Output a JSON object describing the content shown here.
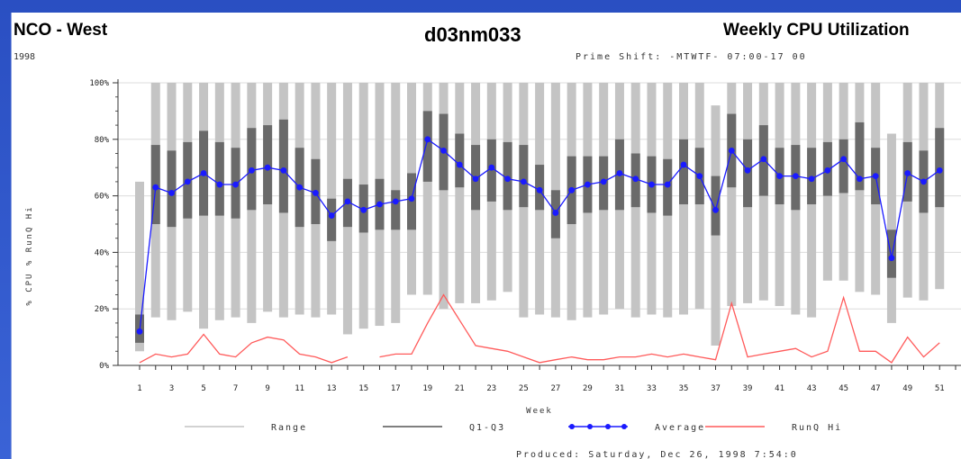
{
  "header": {
    "left_title": "NCO - West",
    "year": "1998",
    "center_title": "d03nm033",
    "right_title": "Weekly CPU Utilization",
    "shift_note": "Prime Shift: -MTWTF- 07:00-17 00",
    "produced": "Produced: Saturday, Dec 26, 1998 7:54:0"
  },
  "chart_data": {
    "type": "line",
    "xlabel": "Week",
    "ylabel": "% CPU  % RunQ Hi",
    "ylim": [
      0,
      100
    ],
    "yticks": [
      "0%",
      "20%",
      "40%",
      "60%",
      "80%",
      "100%"
    ],
    "xticks": [
      "1",
      "3",
      "5",
      "7",
      "9",
      "11",
      "13",
      "15",
      "17",
      "19",
      "21",
      "23",
      "25",
      "27",
      "29",
      "31",
      "33",
      "35",
      "37",
      "39",
      "41",
      "43",
      "45",
      "47",
      "49",
      "51"
    ],
    "grid": true,
    "legend_position": "bottom",
    "colors": {
      "range": "#c4c4c4",
      "q1q3": "#6a6a6a",
      "average": "#1a1aff",
      "runq": "#ff5a5a"
    },
    "weeks": [
      1,
      2,
      3,
      4,
      5,
      6,
      7,
      8,
      9,
      10,
      11,
      12,
      13,
      14,
      15,
      16,
      17,
      18,
      19,
      20,
      21,
      22,
      23,
      24,
      25,
      26,
      27,
      28,
      29,
      30,
      31,
      32,
      33,
      34,
      35,
      36,
      37,
      38,
      39,
      40,
      41,
      42,
      43,
      44,
      45,
      46,
      47,
      48,
      49,
      50,
      51,
      52
    ],
    "series": [
      {
        "name": "Range",
        "low": [
          5,
          17,
          16,
          19,
          13,
          16,
          17,
          15,
          19,
          17,
          18,
          17,
          18,
          11,
          13,
          14,
          15,
          25,
          25,
          20,
          22,
          22,
          23,
          26,
          17,
          18,
          17,
          16,
          17,
          18,
          20,
          17,
          18,
          17,
          18,
          20,
          7,
          21,
          22,
          23,
          21,
          18,
          17,
          30,
          30,
          26,
          25,
          15,
          24,
          23,
          27,
          0
        ],
        "high": [
          65,
          100,
          100,
          100,
          100,
          100,
          100,
          100,
          100,
          100,
          100,
          100,
          100,
          100,
          100,
          100,
          100,
          100,
          100,
          100,
          100,
          100,
          100,
          100,
          100,
          100,
          100,
          100,
          100,
          100,
          100,
          100,
          100,
          100,
          100,
          100,
          92,
          100,
          100,
          100,
          100,
          100,
          100,
          100,
          100,
          100,
          100,
          82,
          100,
          100,
          100,
          0
        ]
      },
      {
        "name": "Q1-Q3",
        "low": [
          8,
          50,
          49,
          52,
          53,
          53,
          52,
          55,
          57,
          54,
          49,
          50,
          44,
          49,
          47,
          48,
          48,
          48,
          65,
          62,
          63,
          55,
          58,
          55,
          56,
          55,
          45,
          50,
          54,
          55,
          55,
          56,
          54,
          53,
          57,
          57,
          46,
          63,
          56,
          60,
          57,
          55,
          57,
          60,
          61,
          62,
          57,
          31,
          58,
          54,
          56,
          0
        ],
        "high": [
          18,
          78,
          76,
          79,
          83,
          79,
          77,
          84,
          85,
          87,
          77,
          73,
          59,
          66,
          64,
          66,
          62,
          68,
          90,
          89,
          82,
          78,
          80,
          79,
          78,
          71,
          62,
          74,
          74,
          74,
          80,
          75,
          74,
          73,
          80,
          77,
          67,
          89,
          80,
          85,
          77,
          78,
          77,
          79,
          80,
          86,
          77,
          48,
          79,
          76,
          84,
          0
        ]
      },
      {
        "name": "Average",
        "values": [
          12,
          63,
          61,
          65,
          68,
          64,
          64,
          69,
          70,
          69,
          63,
          61,
          53,
          58,
          55,
          57,
          58,
          59,
          80,
          76,
          71,
          66,
          70,
          66,
          65,
          62,
          54,
          62,
          64,
          65,
          68,
          66,
          64,
          64,
          71,
          67,
          55,
          76,
          69,
          73,
          67,
          67,
          66,
          69,
          73,
          66,
          67,
          38,
          68,
          65,
          69,
          null
        ]
      },
      {
        "name": "RunQ Hi",
        "values": [
          1,
          4,
          3,
          4,
          11,
          4,
          3,
          8,
          10,
          9,
          4,
          3,
          1,
          3,
          null,
          3,
          4,
          4,
          15,
          25,
          16,
          7,
          6,
          5,
          3,
          1,
          2,
          3,
          2,
          2,
          3,
          3,
          4,
          3,
          4,
          3,
          2,
          22,
          3,
          4,
          5,
          6,
          3,
          5,
          24,
          5,
          5,
          1,
          10,
          3,
          8,
          null
        ]
      }
    ]
  }
}
